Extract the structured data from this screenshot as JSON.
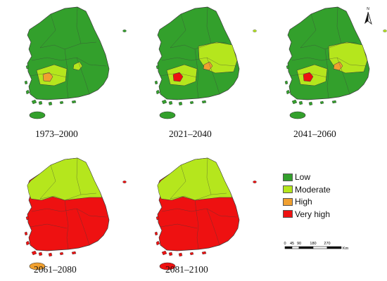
{
  "legend": {
    "items": [
      {
        "label": "Low",
        "color": "#33a02c"
      },
      {
        "label": "Moderate",
        "color": "#b5e61d"
      },
      {
        "label": "High",
        "color": "#f0a030"
      },
      {
        "label": "Very high",
        "color": "#ee1111"
      }
    ]
  },
  "scale_bar": {
    "ticks": [
      "0",
      "45",
      "90",
      "180",
      "270"
    ],
    "unit": "Km"
  },
  "north_arrow": {
    "label": "N",
    "icon": "north-arrow-icon"
  },
  "maps": [
    {
      "period": "1973–2000",
      "mainland": "Low",
      "zones": [
        {
          "region": "southwest-central",
          "class": "Moderate"
        },
        {
          "region": "southwest-spot",
          "class": "High"
        },
        {
          "region": "southeast-spot",
          "class": "Moderate"
        }
      ],
      "jeju": "Low",
      "islet": "Low"
    },
    {
      "period": "2021–2040",
      "mainland": "Low",
      "zones": [
        {
          "region": "east-central",
          "class": "Moderate"
        },
        {
          "region": "southwest-central",
          "class": "Moderate"
        },
        {
          "region": "southwest-spot",
          "class": "Very high"
        },
        {
          "region": "southeast-spot",
          "class": "High"
        }
      ],
      "jeju": "Low",
      "islet": "Moderate"
    },
    {
      "period": "2041–2060",
      "mainland": "Low",
      "zones": [
        {
          "region": "east-central",
          "class": "Moderate"
        },
        {
          "region": "southwest-central",
          "class": "Moderate"
        },
        {
          "region": "southwest-spot",
          "class": "Very high"
        },
        {
          "region": "southeast-spot",
          "class": "High"
        }
      ],
      "jeju": "Low",
      "islet": "Moderate"
    },
    {
      "period": "2061–2080",
      "mainland": "Very high",
      "zones": [
        {
          "region": "north",
          "class": "Moderate"
        }
      ],
      "jeju": "High",
      "islet": "Very high"
    },
    {
      "period": "2081–2100",
      "mainland": "Very high",
      "zones": [
        {
          "region": "north",
          "class": "Moderate"
        }
      ],
      "jeju": "Very high",
      "islet": "Very high"
    }
  ]
}
